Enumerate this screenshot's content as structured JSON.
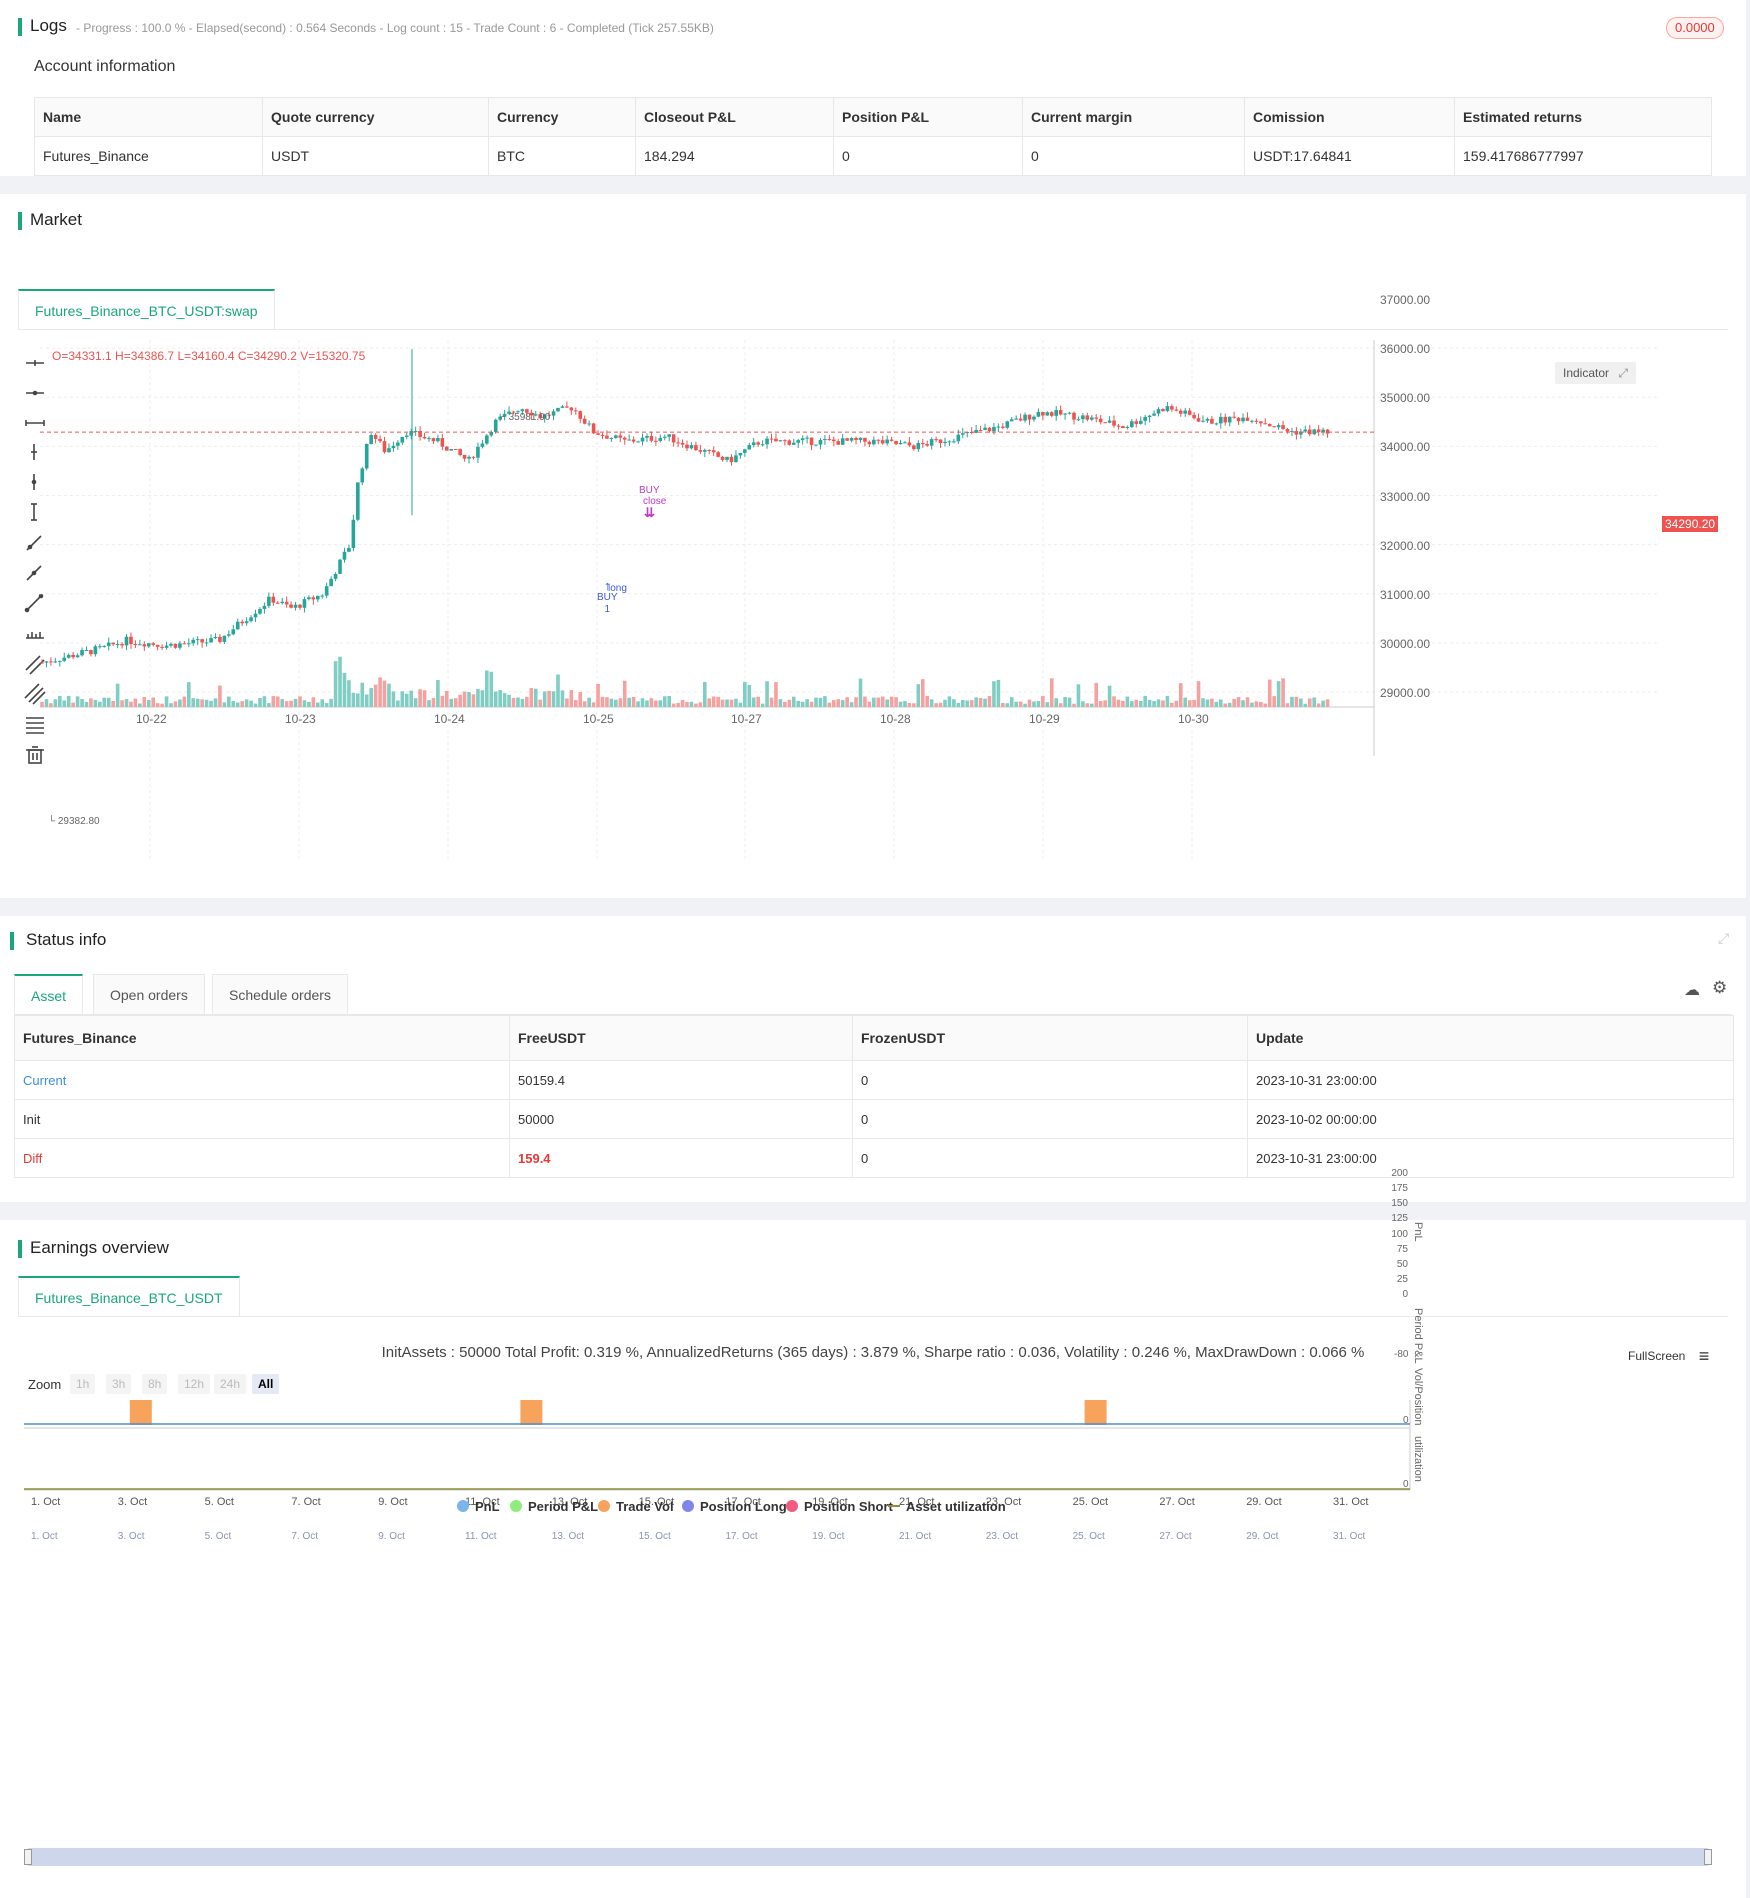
{
  "logs": {
    "title": "Logs",
    "status": "- Progress : 100.0 % - Elapsed(second) : 0.564  Seconds - Log count : 15 - Trade Count : 6 - Completed (Tick 257.55KB)",
    "badge": "0.0000"
  },
  "account": {
    "title": "Account information",
    "headers": [
      "Name",
      "Quote currency",
      "Currency",
      "Closeout P&L",
      "Position P&L",
      "Current margin",
      "Comission",
      "Estimated returns"
    ],
    "row": [
      "Futures_Binance",
      "USDT",
      "BTC",
      "184.294",
      "0",
      "0",
      "USDT:17.64841",
      "159.417686777997"
    ]
  },
  "market": {
    "title": "Market",
    "tab": "Futures_Binance_BTC_USDT:swap",
    "ohlc": "O=34331.1 H=34386.7 L=34160.4 C=34290.2 V=15320.75",
    "indicator_btn": "Indicator",
    "last_price": "34290.20",
    "high_label": "35981.90",
    "low_label": "29382.80",
    "y_ticks": [
      "37000.00",
      "36000.00",
      "35000.00",
      "34000.00",
      "33000.00",
      "32000.00",
      "31000.00",
      "30000.00",
      "29000.00"
    ],
    "x_ticks": [
      "10-22",
      "10-23",
      "10-24",
      "10-25",
      "10-27",
      "10-28",
      "10-29",
      "10-30"
    ],
    "annotations": {
      "buy1": "BUY",
      "buy1_qty": "1",
      "long": "long",
      "buy2": "BUY",
      "close": "close"
    },
    "colors": {
      "up": "#26a69a",
      "down": "#ef5350"
    }
  },
  "status": {
    "title": "Status info",
    "tabs": [
      "Asset",
      "Open orders",
      "Schedule orders"
    ],
    "headers": [
      "Futures_Binance",
      "FreeUSDT",
      "FrozenUSDT",
      "Update"
    ],
    "rows": [
      {
        "label": "Current",
        "free": "50159.4",
        "frozen": "0",
        "update": "2023-10-31 23:00:00"
      },
      {
        "label": "Init",
        "free": "50000",
        "frozen": "0",
        "update": "2023-10-02 00:00:00"
      },
      {
        "label": "Diff",
        "free": "159.4",
        "frozen": "0",
        "update": "2023-10-31 23:00:00"
      }
    ]
  },
  "earnings": {
    "title": "Earnings overview",
    "tab": "Futures_Binance_BTC_USDT",
    "summary": "InitAssets : 50000 Total Profit: 0.319 %, AnnualizedReturns (365 days) : 3.879 %, Sharpe ratio : 0.036, Volatility : 0.246 %, MaxDrawDown : 0.066 %",
    "fullscreen": "FullScreen",
    "zoom_label": "Zoom",
    "zoom_buttons": [
      "1h",
      "3h",
      "8h",
      "12h",
      "24h",
      "All"
    ],
    "pnl_ticks": [
      "200",
      "175",
      "150",
      "125",
      "100",
      "75",
      "50",
      "25",
      "0"
    ],
    "period_tick": "-80",
    "vol_tick": "0",
    "util_tick": "0",
    "axis_titles": [
      "PnL",
      "Period P&L",
      "Vol/Position",
      "utilization"
    ],
    "x_ticks": [
      "1. Oct",
      "3. Oct",
      "5. Oct",
      "7. Oct",
      "9. Oct",
      "11. Oct",
      "13. Oct",
      "15. Oct",
      "17. Oct",
      "19. Oct",
      "21. Oct",
      "23. Oct",
      "25. Oct",
      "27. Oct",
      "29. Oct",
      "31. Oct"
    ],
    "legend": [
      {
        "name": "PnL",
        "color": "#7cb5ec"
      },
      {
        "name": "Period P&L",
        "color": "#90ed7d"
      },
      {
        "name": "Trade Vol",
        "color": "#f7a35c"
      },
      {
        "name": "Position Long",
        "color": "#8085e9"
      },
      {
        "name": "Position Short",
        "color": "#f15c80"
      },
      {
        "name": "Asset utilization",
        "color": "#8d8d3a"
      }
    ]
  }
}
